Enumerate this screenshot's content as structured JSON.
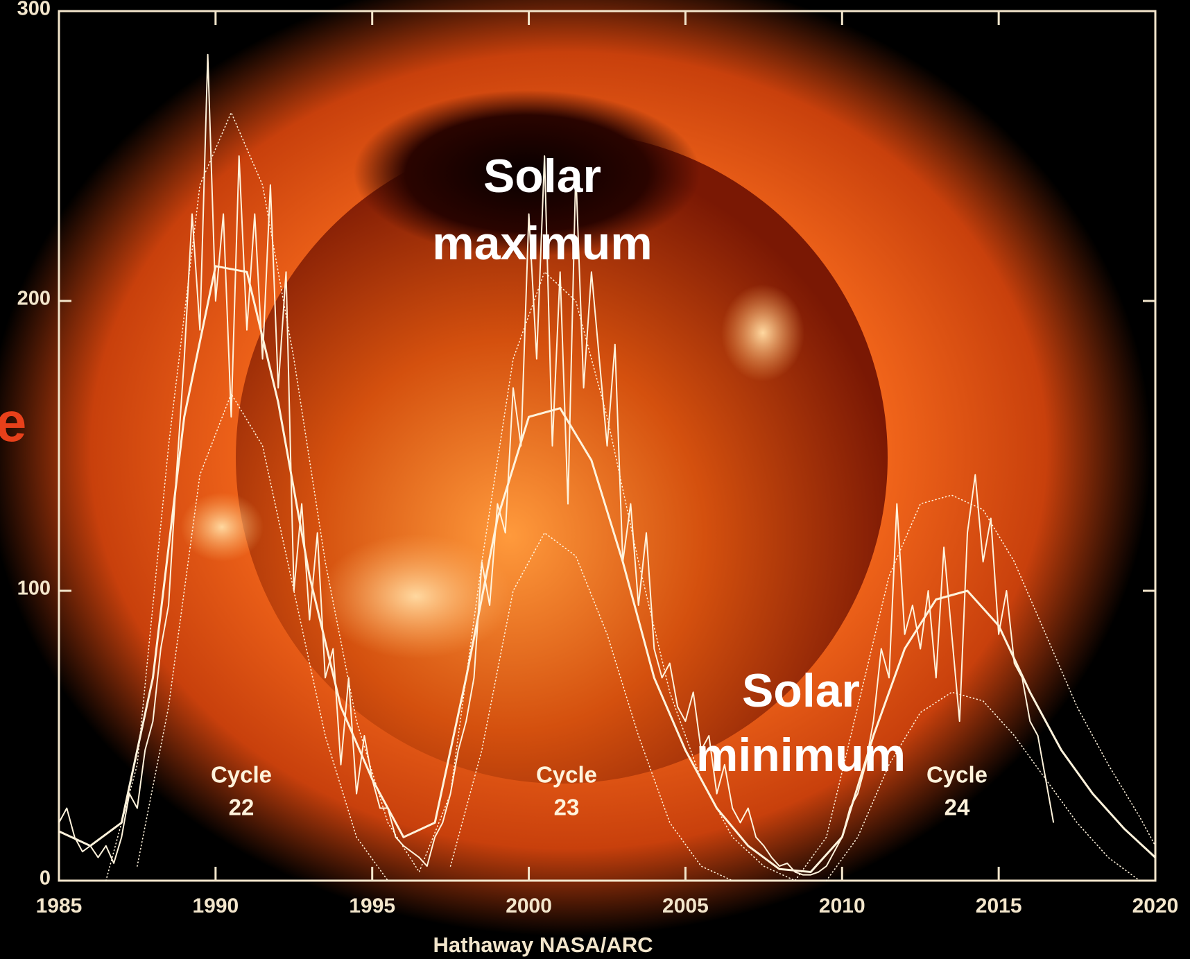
{
  "chart_data": {
    "type": "line",
    "xlim": [
      1985,
      2020
    ],
    "ylim": [
      0,
      300
    ],
    "xticks": [
      1985,
      1990,
      1995,
      2000,
      2005,
      2010,
      2015,
      2020
    ],
    "yticks": [
      0,
      100,
      200,
      300
    ],
    "series": [
      {
        "color": "#fff3dc",
        "style": "solid",
        "width": 2,
        "x": [
          1985,
          1985.25,
          1985.5,
          1985.75,
          1986,
          1986.25,
          1986.5,
          1986.75,
          1987,
          1987.25,
          1987.5,
          1987.75,
          1988,
          1988.25,
          1988.5,
          1988.75,
          1989,
          1989.25,
          1989.5,
          1989.75,
          1990,
          1990.25,
          1990.5,
          1990.75,
          1991,
          1991.25,
          1991.5,
          1991.75,
          1992,
          1992.25,
          1992.5,
          1992.75,
          1993,
          1993.25,
          1993.5,
          1993.75,
          1994,
          1994.25,
          1994.5,
          1994.75,
          1995,
          1995.25,
          1995.5,
          1995.75,
          1996,
          1996.25,
          1996.5,
          1996.75,
          1997,
          1997.25,
          1997.5,
          1997.75,
          1998,
          1998.25,
          1998.5,
          1998.75,
          1999,
          1999.25,
          1999.5,
          1999.75,
          2000,
          2000.25,
          2000.5,
          2000.75,
          2001,
          2001.25,
          2001.5,
          2001.75,
          2002,
          2002.25,
          2002.5,
          2002.75,
          2003,
          2003.25,
          2003.5,
          2003.75,
          2004,
          2004.25,
          2004.5,
          2004.75,
          2005,
          2005.25,
          2005.5,
          2005.75,
          2006,
          2006.25,
          2006.5,
          2006.75,
          2007,
          2007.25,
          2007.5,
          2007.75,
          2008,
          2008.25,
          2008.5,
          2008.75,
          2009,
          2009.25,
          2009.5,
          2009.75,
          2010,
          2010.25,
          2010.5,
          2010.75,
          2011,
          2011.25,
          2011.5,
          2011.75,
          2012,
          2012.25,
          2012.5,
          2012.75,
          2013,
          2013.25,
          2013.5,
          2013.75,
          2014,
          2014.25,
          2014.5,
          2014.75,
          2015,
          2015.25,
          2015.5,
          2015.75,
          2016,
          2016.25,
          2016.5,
          2016.75
        ],
        "values": [
          20,
          25,
          15,
          10,
          12,
          8,
          12,
          6,
          15,
          30,
          25,
          45,
          55,
          80,
          95,
          140,
          180,
          230,
          190,
          285,
          200,
          230,
          160,
          250,
          190,
          230,
          180,
          240,
          170,
          210,
          100,
          130,
          90,
          120,
          70,
          80,
          40,
          70,
          30,
          50,
          35,
          25,
          25,
          15,
          12,
          10,
          8,
          5,
          15,
          20,
          30,
          45,
          55,
          70,
          110,
          95,
          130,
          120,
          170,
          150,
          230,
          180,
          250,
          150,
          210,
          130,
          245,
          170,
          210,
          180,
          150,
          185,
          110,
          130,
          95,
          120,
          80,
          70,
          75,
          60,
          55,
          65,
          45,
          50,
          30,
          40,
          25,
          20,
          25,
          15,
          12,
          8,
          5,
          6,
          3,
          2,
          2,
          3,
          5,
          10,
          15,
          25,
          30,
          40,
          55,
          80,
          70,
          130,
          85,
          95,
          80,
          100,
          70,
          115,
          85,
          55,
          120,
          140,
          110,
          125,
          85,
          100,
          75,
          70,
          55,
          50,
          35,
          20
        ]
      },
      {
        "color": "#fff3dc",
        "style": "solid",
        "width": 3,
        "x": [
          1985,
          1986,
          1987,
          1988,
          1989,
          1990,
          1991,
          1992,
          1993,
          1994,
          1995,
          1996,
          1997,
          1998,
          1999,
          2000,
          2001,
          2002,
          2003,
          2004,
          2005,
          2006,
          2007,
          2008,
          2009,
          2010,
          2011,
          2012,
          2013,
          2014,
          2015,
          2016,
          2017,
          2018,
          2019,
          2020
        ],
        "values": [
          17,
          12,
          20,
          70,
          160,
          212,
          210,
          165,
          105,
          60,
          35,
          15,
          20,
          70,
          125,
          160,
          163,
          145,
          110,
          70,
          45,
          25,
          12,
          4,
          3,
          15,
          50,
          80,
          97,
          100,
          88,
          65,
          45,
          30,
          18,
          8
        ]
      },
      {
        "color": "#fff3dc",
        "style": "dotted",
        "width": 2,
        "x": [
          1986.5,
          1987.5,
          1988.5,
          1989.5,
          1990.5,
          1991.5,
          1992.5,
          1993.5,
          1994.5,
          1995.5,
          1996.5,
          1997.5,
          1998.5,
          1999.5,
          2000.5,
          2001.5,
          2002.5,
          2003.5,
          2004.5,
          2005.5,
          2006.5,
          2007.5,
          2008.5,
          2009.5,
          2010.5,
          2011.5,
          2012.5,
          2013.5,
          2014.5,
          2015.5,
          2016.5,
          2017.5,
          2018.5,
          2019.5,
          2020
        ],
        "values": [
          0,
          40,
          150,
          240,
          265,
          240,
          180,
          110,
          55,
          20,
          3,
          30,
          110,
          180,
          210,
          200,
          160,
          110,
          65,
          35,
          15,
          5,
          0,
          15,
          60,
          105,
          130,
          133,
          128,
          110,
          85,
          60,
          40,
          22,
          12
        ]
      },
      {
        "color": "#fff3dc",
        "style": "dotted",
        "width": 2,
        "x": [
          1987.5,
          1988.5,
          1989.5,
          1990.5,
          1991.5,
          1992.5,
          1993.5,
          1994.5,
          1995.5,
          1996.5,
          1997.5,
          1998.5,
          1999.5,
          2000.5,
          2001.5,
          2002.5,
          2003.5,
          2004.5,
          2005.5,
          2006.5,
          2008,
          2009.5,
          2010.5,
          2011.5,
          2012.5,
          2013.5,
          2014.5,
          2015.5,
          2016.5,
          2017.5,
          2018.5,
          2019.5
        ],
        "values": [
          5,
          60,
          140,
          168,
          150,
          100,
          50,
          15,
          0,
          null,
          5,
          45,
          100,
          120,
          112,
          85,
          50,
          20,
          5,
          0,
          null,
          0,
          15,
          40,
          58,
          65,
          62,
          50,
          35,
          20,
          8,
          0
        ]
      }
    ],
    "annotations": [
      {
        "text": [
          "Solar",
          "maximum"
        ],
        "color": "#ffffff"
      },
      {
        "text": [
          "Solar",
          "minimum"
        ],
        "color": "#ffffff"
      },
      {
        "text": [
          "Cycle",
          "22"
        ],
        "color": "#fff3dc"
      },
      {
        "text": [
          "Cycle",
          "23"
        ],
        "color": "#fff3dc"
      },
      {
        "text": [
          "Cycle",
          "24"
        ],
        "color": "#fff3dc"
      },
      {
        "text": [
          "e"
        ],
        "color": "#e8401a"
      }
    ],
    "credit": "Hathaway  NASA/ARC",
    "axis_color": "#f3e6cc"
  }
}
